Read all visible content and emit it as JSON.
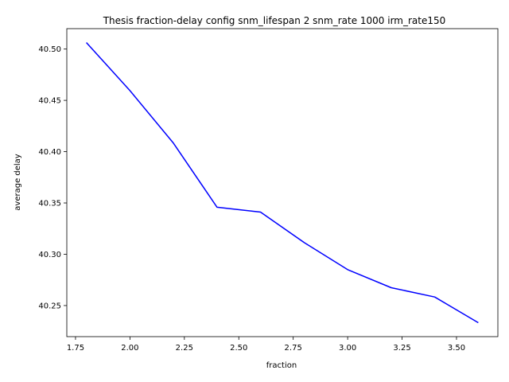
{
  "chart_data": {
    "type": "line",
    "title": "Thesis fraction-delay config snm_lifespan 2 snm_rate 1000 irm_rate150",
    "xlabel": "fraction",
    "ylabel": "average delay",
    "xlim": [
      1.71,
      3.69
    ],
    "ylim": [
      40.2197,
      40.5199
    ],
    "xticks": [
      1.75,
      2.0,
      2.25,
      2.5,
      2.75,
      3.0,
      3.25,
      3.5
    ],
    "xtick_labels": [
      "1.75",
      "2.00",
      "2.25",
      "2.50",
      "2.75",
      "3.00",
      "3.25",
      "3.50"
    ],
    "yticks": [
      40.25,
      40.3,
      40.35,
      40.4,
      40.45,
      40.5
    ],
    "ytick_labels": [
      "40.25",
      "40.30",
      "40.35",
      "40.40",
      "40.45",
      "40.50"
    ],
    "grid": false,
    "legend": "none",
    "series": [
      {
        "color": "#0000ff",
        "x": [
          1.8,
          2.0,
          2.2,
          2.4,
          2.6,
          2.8,
          3.0,
          3.2,
          3.4,
          3.6
        ],
        "y": [
          40.5063,
          40.4595,
          40.4083,
          40.3458,
          40.3411,
          40.3115,
          40.285,
          40.2674,
          40.2583,
          40.2333
        ]
      }
    ]
  }
}
